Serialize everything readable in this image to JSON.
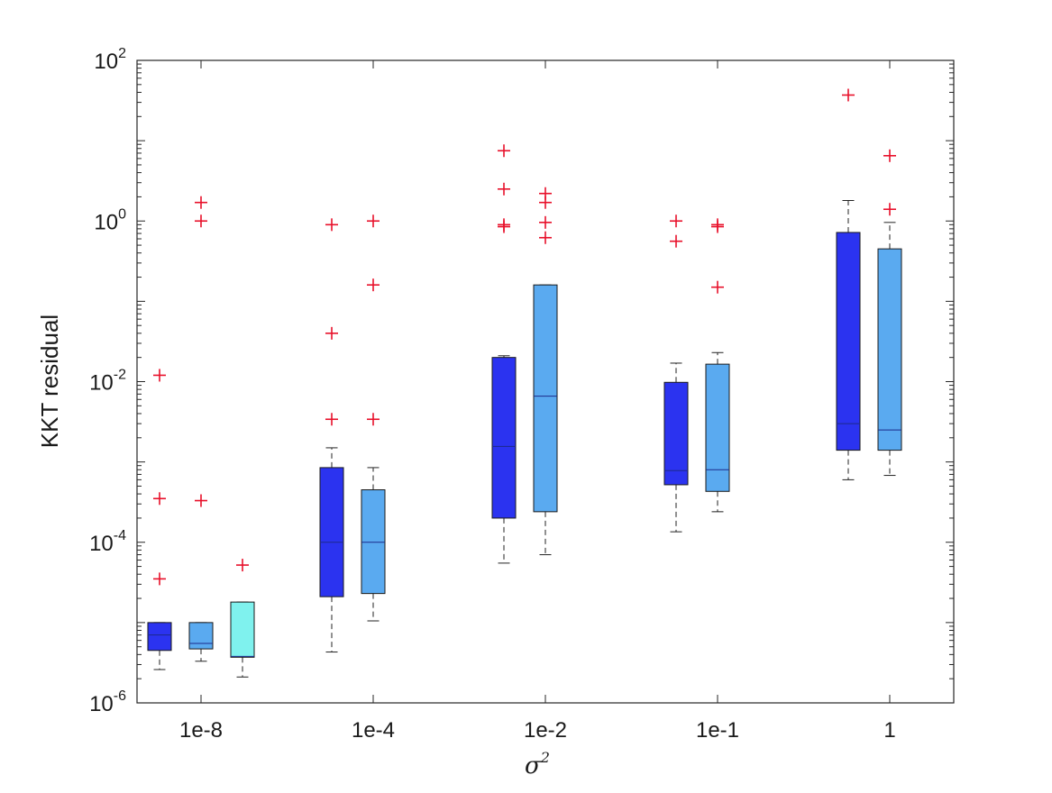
{
  "chart_data": {
    "type": "box",
    "title": "",
    "xlabel": "σ",
    "xlabel_exponent": "2",
    "ylabel": "KKT residual",
    "yscale": "log",
    "ylim": [
      1e-06,
      100
    ],
    "y_ticks": [
      {
        "value": 1e-06,
        "base": "10",
        "exp": "-6"
      },
      {
        "value": 0.0001,
        "base": "10",
        "exp": "-4"
      },
      {
        "value": 0.01,
        "base": "10",
        "exp": "-2"
      },
      {
        "value": 1,
        "base": "10",
        "exp": "0"
      },
      {
        "value": 100,
        "base": "10",
        "exp": "2"
      }
    ],
    "categories": [
      "1e-8",
      "1e-4",
      "1e-2",
      "1e-1",
      "1"
    ],
    "series_colors": [
      "#2b33f0",
      "#5aaaf0",
      "#7ff2ee"
    ],
    "outlier_color": "#e8102a",
    "grid": false,
    "boxes": [
      {
        "category": "1e-8",
        "slot": 0,
        "q1": 4.5e-06,
        "median": 7e-06,
        "q3": 1e-05,
        "whisker_low": 2.6e-06,
        "whisker_high": 1e-05,
        "outliers": [
          0.00035,
          3.5e-05,
          0.012
        ]
      },
      {
        "category": "1e-8",
        "slot": 1,
        "q1": 4.7e-06,
        "median": 5.5e-06,
        "q3": 1e-05,
        "whisker_low": 3.3e-06,
        "whisker_high": 1e-05,
        "outliers": [
          0.00033,
          1.0,
          1.7
        ]
      },
      {
        "category": "1e-8",
        "slot": 2,
        "q1": 3.7e-06,
        "median": 3.8e-06,
        "q3": 1.8e-05,
        "whisker_low": 2.1e-06,
        "whisker_high": 1.8e-05,
        "outliers": [
          5.2e-05
        ]
      },
      {
        "category": "1e-4",
        "slot": 0,
        "q1": 2.1e-05,
        "median": 0.0001,
        "q3": 0.00085,
        "whisker_low": 4.3e-06,
        "whisker_high": 0.0015,
        "outliers": [
          0.0034,
          0.04,
          0.9
        ]
      },
      {
        "category": "1e-4",
        "slot": 1,
        "q1": 2.3e-05,
        "median": 0.0001,
        "q3": 0.00045,
        "whisker_low": 1.05e-05,
        "whisker_high": 0.00085,
        "outliers": [
          0.0034,
          0.16,
          1.0
        ]
      },
      {
        "category": "1e-2",
        "slot": 0,
        "q1": 0.0002,
        "median": 0.00156,
        "q3": 0.02,
        "whisker_low": 5.5e-05,
        "whisker_high": 0.021,
        "outliers": [
          0.85,
          0.9,
          2.5,
          7.5
        ]
      },
      {
        "category": "1e-2",
        "slot": 1,
        "q1": 0.00024,
        "median": 0.0066,
        "q3": 0.16,
        "whisker_low": 7e-05,
        "whisker_high": 0.16,
        "outliers": [
          0.62,
          0.96,
          1.7,
          2.2
        ]
      },
      {
        "category": "1e-1",
        "slot": 0,
        "q1": 0.00052,
        "median": 0.00078,
        "q3": 0.0098,
        "whisker_low": 0.000135,
        "whisker_high": 0.017,
        "outliers": [
          0.56,
          1.0
        ]
      },
      {
        "category": "1e-1",
        "slot": 1,
        "q1": 0.00043,
        "median": 0.0008,
        "q3": 0.0165,
        "whisker_low": 0.00024,
        "whisker_high": 0.023,
        "outliers": [
          0.15,
          0.85,
          0.9
        ]
      },
      {
        "category": "1",
        "slot": 0,
        "q1": 0.0014,
        "median": 0.003,
        "q3": 0.72,
        "whisker_low": 0.0006,
        "whisker_high": 1.8,
        "outliers": [
          37
        ]
      },
      {
        "category": "1",
        "slot": 1,
        "q1": 0.0014,
        "median": 0.0025,
        "q3": 0.45,
        "whisker_low": 0.00068,
        "whisker_high": 0.96,
        "outliers": [
          1.4,
          6.5
        ]
      }
    ]
  }
}
